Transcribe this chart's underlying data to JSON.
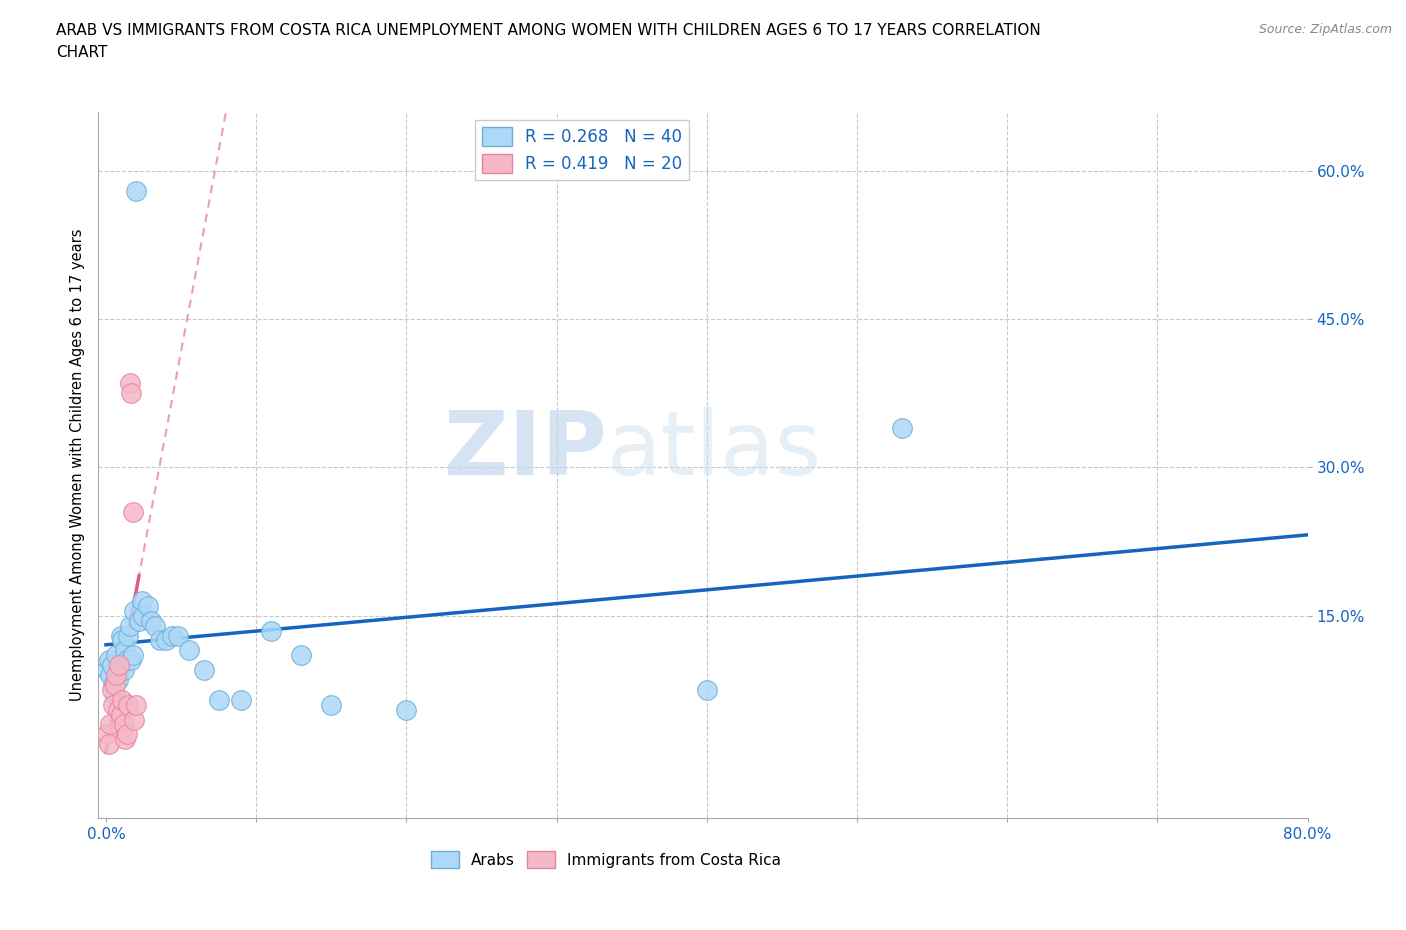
{
  "title": "ARAB VS IMMIGRANTS FROM COSTA RICA UNEMPLOYMENT AMONG WOMEN WITH CHILDREN AGES 6 TO 17 YEARS CORRELATION\nCHART",
  "source": "Source: ZipAtlas.com",
  "ylabel": "Unemployment Among Women with Children Ages 6 to 17 years",
  "ytick_labels": [
    "60.0%",
    "45.0%",
    "30.0%",
    "15.0%"
  ],
  "ytick_values": [
    0.6,
    0.45,
    0.3,
    0.15
  ],
  "xlim": [
    -0.005,
    0.8
  ],
  "ylim": [
    -0.055,
    0.66
  ],
  "arab_color": "#add8f7",
  "arab_edge_color": "#6aaed6",
  "cr_color": "#f5b8c8",
  "cr_edge_color": "#e8829e",
  "trend_arab_color": "#1565c0",
  "trend_cr_color": "#e05c85",
  "watermark_zip": "ZIP",
  "watermark_atlas": "atlas",
  "legend_arab_R": "0.268",
  "legend_arab_N": "40",
  "legend_cr_R": "0.419",
  "legend_cr_N": "20",
  "arab_x": [
    0.001,
    0.002,
    0.003,
    0.004,
    0.005,
    0.006,
    0.007,
    0.008,
    0.009,
    0.01,
    0.011,
    0.012,
    0.013,
    0.014,
    0.015,
    0.016,
    0.017,
    0.018,
    0.019,
    0.02,
    0.022,
    0.024,
    0.025,
    0.028,
    0.03,
    0.033,
    0.036,
    0.04,
    0.044,
    0.048,
    0.055,
    0.065,
    0.075,
    0.09,
    0.11,
    0.13,
    0.15,
    0.2,
    0.4,
    0.53
  ],
  "arab_y": [
    0.095,
    0.105,
    0.09,
    0.1,
    0.08,
    0.07,
    0.11,
    0.085,
    0.095,
    0.13,
    0.125,
    0.095,
    0.115,
    0.105,
    0.13,
    0.14,
    0.105,
    0.11,
    0.155,
    0.58,
    0.145,
    0.165,
    0.15,
    0.16,
    0.145,
    0.14,
    0.125,
    0.125,
    0.13,
    0.13,
    0.115,
    0.095,
    0.065,
    0.065,
    0.135,
    0.11,
    0.06,
    0.055,
    0.075,
    0.34
  ],
  "cr_x": [
    0.001,
    0.002,
    0.003,
    0.004,
    0.005,
    0.006,
    0.007,
    0.008,
    0.009,
    0.01,
    0.011,
    0.012,
    0.013,
    0.014,
    0.015,
    0.016,
    0.017,
    0.018,
    0.019,
    0.02
  ],
  "cr_y": [
    0.03,
    0.02,
    0.04,
    0.075,
    0.06,
    0.08,
    0.09,
    0.055,
    0.1,
    0.05,
    0.065,
    0.04,
    0.025,
    0.03,
    0.06,
    0.385,
    0.375,
    0.255,
    0.045,
    0.06
  ]
}
